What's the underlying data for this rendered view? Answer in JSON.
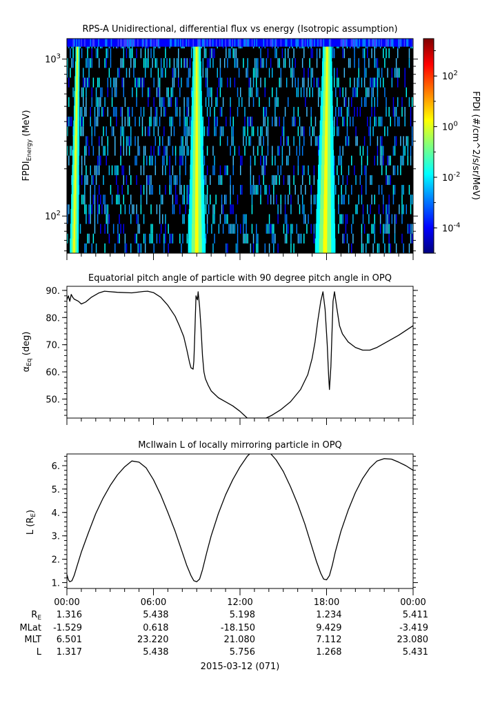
{
  "panels": [
    {
      "title": "RPS-A Unidirectional, differential flux vs energy (Isotropic assumption)",
      "ylabel_main": "FPDI",
      "ylabel_sub": "Energy",
      "ylabel_unit": " (MeV)",
      "colorbar_label": "FPDI (#/cm^2/s/sr/MeV)"
    },
    {
      "title": "Equatorial pitch angle of particle with 90 degree pitch angle in OPQ",
      "ylabel_main": "α",
      "ylabel_sub": "Eq",
      "ylabel_unit": " (deg)"
    },
    {
      "title": "McIlwain L of locally mirroring particle in OPQ",
      "ylabel_main": "L (R",
      "ylabel_sub": "E",
      "ylabel_unit": ")"
    }
  ],
  "ephemeris": {
    "row_labels": [
      "R_E",
      "MLat",
      "MLT",
      "L"
    ],
    "times": [
      "00:00",
      "06:00",
      "12:00",
      "18:00",
      "00:00"
    ],
    "rows": [
      [
        "1.316",
        "5.438",
        "5.198",
        "1.234",
        "5.411"
      ],
      [
        "-1.529",
        "0.618",
        "-18.150",
        "9.429",
        "-3.419"
      ],
      [
        "6.501",
        "23.220",
        "21.080",
        "7.112",
        "23.080"
      ],
      [
        "1.317",
        "5.438",
        "5.756",
        "1.268",
        "5.431"
      ]
    ],
    "date_label": "2015-03-12 (071)"
  },
  "chart_data": [
    {
      "type": "heatmap",
      "title": "RPS-A Unidirectional, differential flux vs energy (Isotropic assumption)",
      "xlabel": "",
      "ylabel": "FPDI Energy (MeV)",
      "x_range_hours": [
        0,
        24
      ],
      "y_scale": "log",
      "ylim": [
        58,
        1350
      ],
      "y_ticks": [
        {
          "value": 100,
          "base": "10",
          "exp": "2"
        },
        {
          "value": 1000,
          "base": "10",
          "exp": "3"
        }
      ],
      "colorbar": {
        "label": "FPDI (#/cm^2/s/sr/MeV)",
        "scale": "log",
        "range": [
          1e-05,
          3000
        ],
        "ticks": [
          {
            "value": 0.0001,
            "base": "10",
            "exp": "-4"
          },
          {
            "value": 0.01,
            "base": "10",
            "exp": "-2"
          },
          {
            "value": 1,
            "base": "10",
            "exp": "0"
          },
          {
            "value": 100,
            "base": "10",
            "exp": "2"
          }
        ],
        "colormap": [
          "#00007f",
          "#0000ff",
          "#007fff",
          "#00ffff",
          "#7fff7f",
          "#ffff00",
          "#ff7f00",
          "#ff0000",
          "#7f0000"
        ]
      },
      "background_color": "#000000",
      "high_flux_bands": [
        {
          "start_hour": 0.2,
          "end_hour": 0.8,
          "energy_low_MeV": 58,
          "energy_high_MeV": 1200
        },
        {
          "start_hour": 8.4,
          "end_hour": 9.6,
          "energy_low_MeV": 58,
          "energy_high_MeV": 1200
        },
        {
          "start_hour": 17.2,
          "end_hour": 18.6,
          "energy_low_MeV": 58,
          "energy_high_MeV": 1200
        }
      ]
    },
    {
      "type": "line",
      "title": "Equatorial pitch angle of particle with 90 degree pitch angle in OPQ",
      "xlabel": "",
      "ylabel": "α Eq (deg)",
      "ylim": [
        43,
        91.5
      ],
      "y_ticks": [
        50,
        60,
        70,
        80,
        90
      ],
      "y_tick_labels": [
        "50.",
        "60.",
        "70.",
        "80.",
        "90."
      ],
      "series": [
        {
          "x": [
            0,
            0.1,
            0.2,
            0.3,
            0.4,
            0.5,
            0.8,
            1.0,
            1.3,
            1.7,
            2.2,
            2.6,
            3.5,
            4.5,
            5.3,
            5.6,
            6.0,
            6.5,
            7.0,
            7.5,
            7.8,
            8.1,
            8.3,
            8.5,
            8.6,
            8.75,
            8.8,
            8.85,
            8.9,
            8.95,
            9.05,
            9.1,
            9.2,
            9.3,
            9.4,
            9.5,
            9.6,
            9.8,
            10.0,
            10.5,
            11.0,
            11.5,
            12.0,
            12.2,
            12.5,
            13.0,
            13.8,
            14.2,
            14.8,
            15.5,
            16.2,
            16.7,
            17.0,
            17.2,
            17.4,
            17.6,
            17.75,
            17.9,
            18.05,
            18.15,
            18.2,
            18.3,
            18.45,
            18.55,
            18.7,
            18.9,
            19.1,
            19.5,
            20.0,
            20.5,
            21.0,
            21.5,
            22.0,
            23.0,
            24.0
          ],
          "y": [
            86.5,
            88.0,
            86.0,
            88.5,
            87.5,
            86.8,
            86.0,
            85.0,
            85.7,
            87.5,
            89.0,
            89.7,
            89.3,
            89.1,
            89.6,
            89.7,
            89.2,
            87.5,
            84.5,
            80.5,
            77.0,
            73.0,
            68.5,
            63.5,
            61.5,
            61.0,
            64.0,
            71.0,
            80.0,
            88.0,
            86.5,
            89.5,
            84.0,
            76.0,
            66.0,
            60.0,
            57.5,
            55.0,
            53.0,
            50.5,
            49.0,
            47.5,
            45.5,
            44.5,
            43.0,
            43.0,
            43.0,
            44.0,
            46.0,
            49.0,
            53.5,
            59.0,
            65.0,
            71.0,
            79.0,
            86.0,
            89.5,
            83.0,
            70.0,
            58.0,
            53.5,
            62.0,
            86.0,
            89.5,
            84.0,
            77.0,
            74.0,
            71.0,
            69.0,
            68.0,
            68.0,
            69.0,
            70.5,
            73.5,
            77.0
          ]
        }
      ]
    },
    {
      "type": "line",
      "title": "McIlwain L of locally mirroring particle in OPQ",
      "xlabel": "",
      "ylabel": "L (R E)",
      "ylim": [
        0.75,
        6.5
      ],
      "y_ticks": [
        1,
        2,
        3,
        4,
        5,
        6
      ],
      "y_tick_labels": [
        "1.",
        "2.",
        "3.",
        "4.",
        "5.",
        "6."
      ],
      "x_ticks_hours": [
        0,
        6,
        12,
        18,
        24
      ],
      "x_tick_labels": [
        "00:00",
        "06:00",
        "12:00",
        "18:00",
        "00:00"
      ],
      "series": [
        {
          "x": [
            0.0,
            0.1,
            0.2,
            0.35,
            0.5,
            0.7,
            1.0,
            1.5,
            2.0,
            2.5,
            3.0,
            3.5,
            4.0,
            4.5,
            5.0,
            5.5,
            6.0,
            6.5,
            7.0,
            7.5,
            8.0,
            8.3,
            8.6,
            8.8,
            9.0,
            9.2,
            9.4,
            9.7,
            10.0,
            10.5,
            11.0,
            11.5,
            12.0,
            12.5,
            13.0,
            13.5,
            14.0,
            14.5,
            15.0,
            15.5,
            16.0,
            16.5,
            17.0,
            17.3,
            17.6,
            17.8,
            18.0,
            18.2,
            18.4,
            18.6,
            19.0,
            19.5,
            20.0,
            20.5,
            21.0,
            21.5,
            22.0,
            22.5,
            23.0,
            23.5,
            24.0
          ],
          "y": [
            1.35,
            1.12,
            1.04,
            1.08,
            1.3,
            1.7,
            2.3,
            3.15,
            3.95,
            4.6,
            5.15,
            5.6,
            5.95,
            6.2,
            6.15,
            5.9,
            5.4,
            4.75,
            4.0,
            3.2,
            2.3,
            1.75,
            1.3,
            1.08,
            1.04,
            1.15,
            1.55,
            2.3,
            3.0,
            3.95,
            4.75,
            5.4,
            5.95,
            6.4,
            6.7,
            6.8,
            6.6,
            6.25,
            5.75,
            5.1,
            4.35,
            3.5,
            2.5,
            1.9,
            1.4,
            1.15,
            1.12,
            1.3,
            1.75,
            2.3,
            3.2,
            4.1,
            4.85,
            5.45,
            5.9,
            6.2,
            6.3,
            6.28,
            6.15,
            6.0,
            5.8
          ]
        }
      ]
    }
  ]
}
